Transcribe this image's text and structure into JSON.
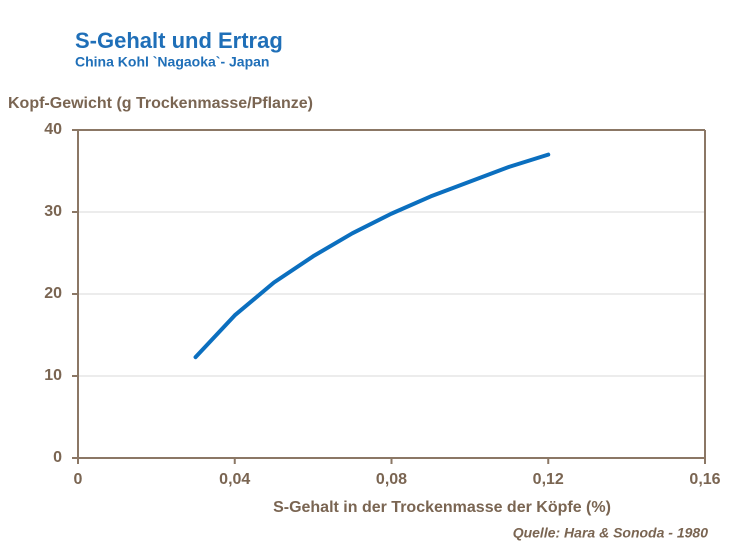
{
  "chart_data": {
    "type": "line",
    "title": "S-Gehalt und Ertrag",
    "subtitle": "China Kohl `Nagaoka`- Japan",
    "y_label": "Kopf-Gewicht (g Trockenmasse/Pflanze)",
    "x_label": "S-Gehalt in der Trockenmasse der Köpfe  (%)",
    "source": "Quelle: Hara & Sonoda - 1980",
    "x": [
      0.03,
      0.04,
      0.05,
      0.06,
      0.07,
      0.08,
      0.09,
      0.1,
      0.11,
      0.12
    ],
    "series": [
      {
        "color": "#0b6fbf",
        "values": [
          12.3,
          17.4,
          21.4,
          24.6,
          27.4,
          29.8,
          31.9,
          33.7,
          35.5,
          37
        ]
      }
    ],
    "xlim": [
      0,
      0.16
    ],
    "xticks": [
      0,
      {
        "value": 0.04,
        "label": "0,04"
      },
      {
        "value": 0.08,
        "label": "0,08"
      },
      {
        "value": 0.12,
        "label": "0,12"
      },
      {
        "value": 0.16,
        "label": "0,16"
      }
    ],
    "ylim": [
      0,
      40
    ],
    "yticks": [
      0,
      10,
      20,
      30,
      40
    ],
    "grid": true
  }
}
